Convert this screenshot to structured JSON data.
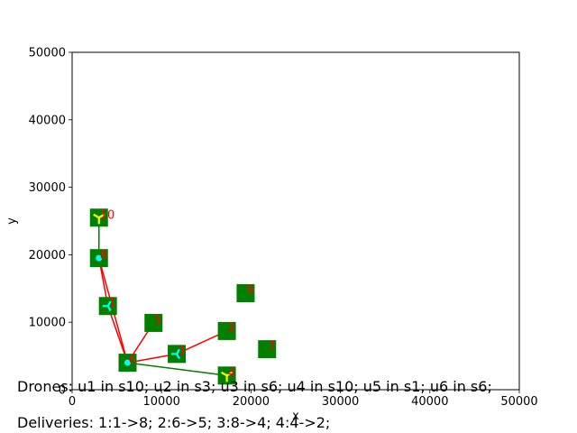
{
  "chart_data": {
    "type": "scatter",
    "title": "",
    "xlabel": "x",
    "ylabel": "y",
    "xlim": [
      0,
      50000
    ],
    "ylim": [
      0,
      50000
    ],
    "grid": false,
    "xticks": [
      "0",
      "10000",
      "20000",
      "30000",
      "40000",
      "50000"
    ],
    "yticks": [
      "0",
      "10000",
      "20000",
      "30000",
      "40000",
      "50000"
    ],
    "xtick_values": [
      0,
      10000,
      20000,
      30000,
      40000,
      50000
    ],
    "ytick_values": [
      0,
      10000,
      20000,
      30000,
      40000,
      50000
    ],
    "stations": [
      {
        "id": "1",
        "x": 4000,
        "y": 12400
      },
      {
        "id": "2",
        "x": 17300,
        "y": 8700
      },
      {
        "id": "3",
        "x": 11700,
        "y": 5300
      },
      {
        "id": "4",
        "x": 17300,
        "y": 2100
      },
      {
        "id": "5",
        "x": 9100,
        "y": 9900
      },
      {
        "id": "6",
        "x": 6200,
        "y": 4000
      },
      {
        "id": "7",
        "x": 21800,
        "y": 6000
      },
      {
        "id": "8",
        "x": 3000,
        "y": 19500
      },
      {
        "id": "9",
        "x": 19400,
        "y": 14300
      },
      {
        "id": "10",
        "x": 3000,
        "y": 25500
      }
    ],
    "red_routes": [
      [
        [
          3000,
          19500
        ],
        [
          4000,
          12400
        ],
        [
          6200,
          4000
        ],
        [
          9100,
          9900
        ]
      ],
      [
        [
          3000,
          19500
        ],
        [
          6200,
          4000
        ],
        [
          11700,
          5300
        ],
        [
          17300,
          8700
        ]
      ]
    ],
    "green_routes": [
      [
        [
          3000,
          25500
        ],
        [
          3000,
          19500
        ]
      ],
      [
        [
          6200,
          4000
        ],
        [
          17300,
          2100
        ]
      ]
    ],
    "markers": [
      {
        "x": 3000,
        "y": 19500,
        "shape": "dot"
      },
      {
        "x": 6200,
        "y": 4000,
        "shape": "dot"
      },
      {
        "x": 4000,
        "y": 12400,
        "shape": "tri-left"
      },
      {
        "x": 11700,
        "y": 5300,
        "shape": "tri-left"
      },
      {
        "x": 3000,
        "y": 25500,
        "shape": "tri-down"
      },
      {
        "x": 17300,
        "y": 2100,
        "shape": "tri-down"
      }
    ],
    "colors": {
      "station": "#008000",
      "red_route": "#ff0000",
      "green_route": "#008000",
      "dot": "#00ffff",
      "tri_left": "#00ffff",
      "tri_down": "#ffff00",
      "label": "#ff0000"
    }
  },
  "captions": {
    "drones": "Drones: u1 in s10; u2 in s3; u3 in s6; u4 in s10; u5 in s1; u6 in s6;",
    "deliveries": "Deliveries: 1:1->8; 2:6->5; 3:8->4; 4:4->2;"
  }
}
